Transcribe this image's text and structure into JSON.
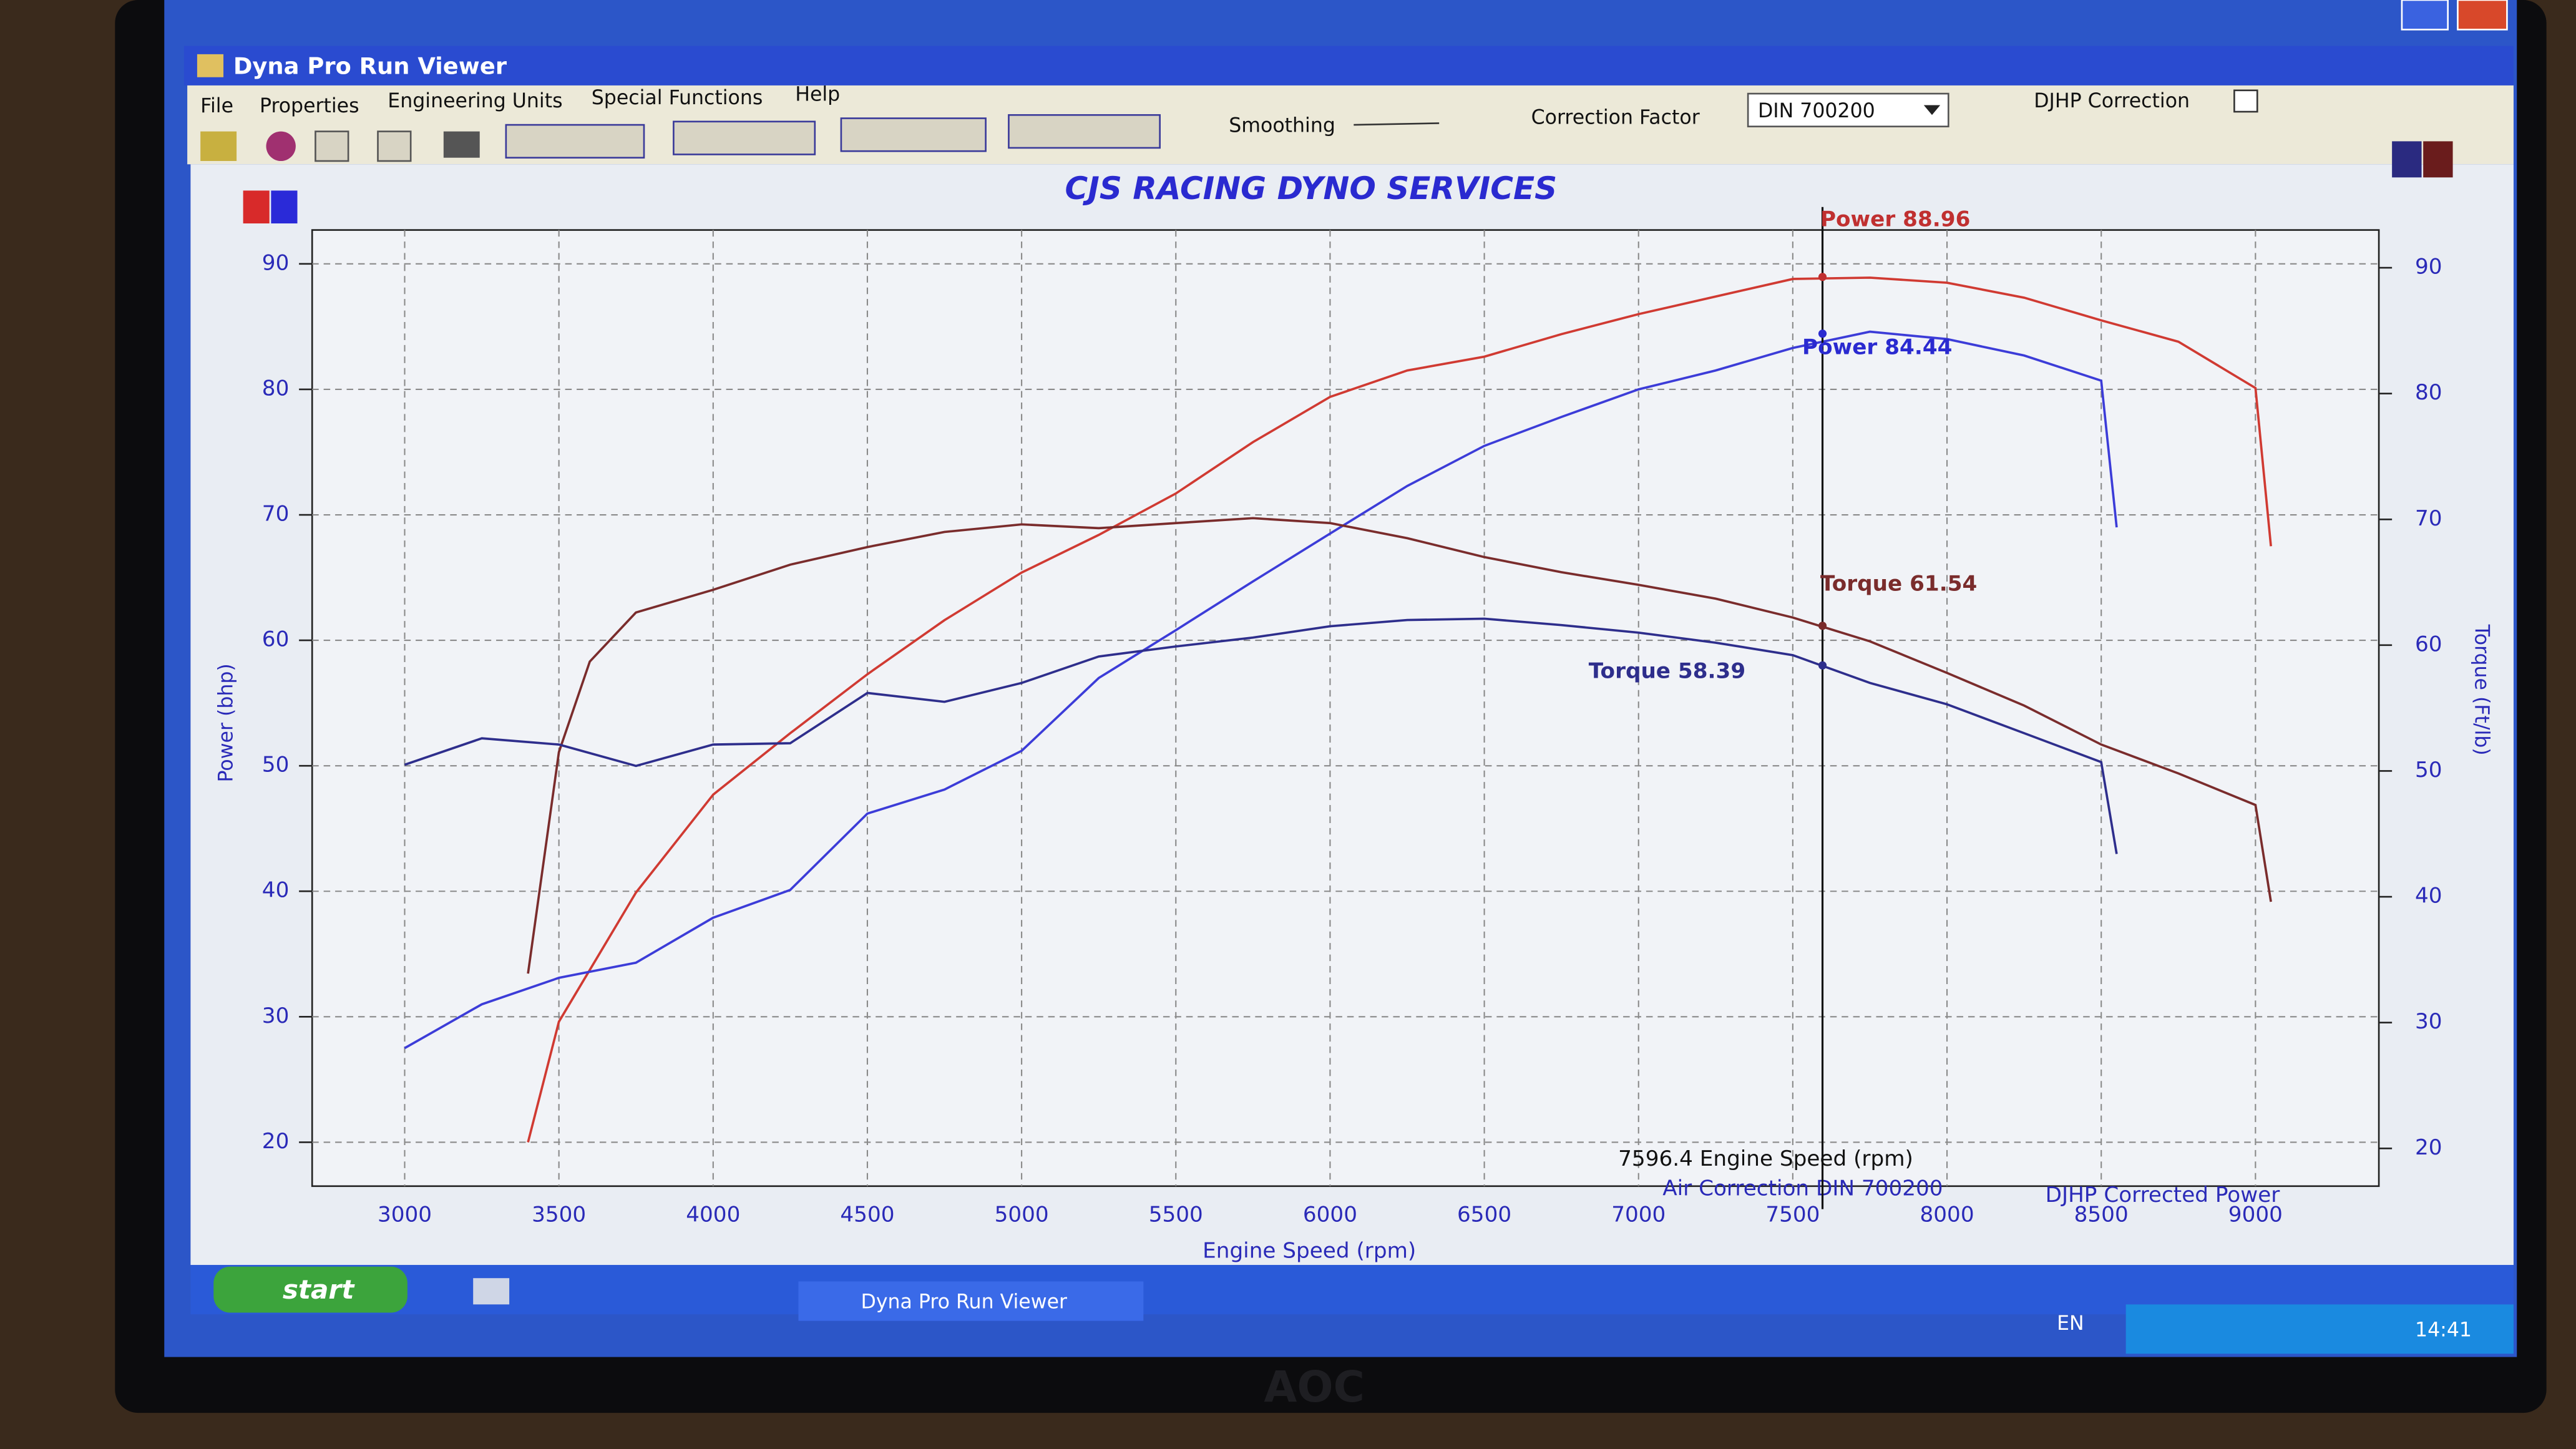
{
  "window": {
    "title": "Dyna Pro Run Viewer",
    "menu": [
      "File",
      "Properties",
      "Engineering Units",
      "Special Functions",
      "Help"
    ],
    "toolbar": {
      "smoothing": "Smoothing",
      "correction_factor": "Correction Factor",
      "correction_value": "DIN 700200",
      "djhp": "DJHP Correction"
    }
  },
  "chart_data": {
    "type": "line",
    "title": "CJS RACING DYNO SERVICES",
    "xlabel": "Engine Speed (rpm)",
    "ylabel": "Power (bhp)",
    "y2label": "Torque (Ft/lb)",
    "xlim": [
      2700,
      9400
    ],
    "xticks": [
      3000,
      3500,
      4000,
      4500,
      5000,
      5500,
      6000,
      6500,
      7000,
      7500,
      8000,
      8500,
      9000
    ],
    "ylim": [
      16.5,
      92.7
    ],
    "yticks": [
      20,
      30,
      40,
      50,
      60,
      70,
      80,
      90
    ],
    "y2lim": [
      17,
      93
    ],
    "y2ticks": [
      20,
      30,
      40,
      50,
      60,
      70,
      80,
      90
    ],
    "grid": true,
    "series": [
      {
        "color": "#d03a32",
        "x": [
          3400,
          3500,
          3750,
          4000,
          4250,
          4500,
          4750,
          5000,
          5250,
          5500,
          5750,
          6000,
          6250,
          6500,
          6750,
          7000,
          7250,
          7500,
          7750,
          8000,
          8250,
          8500,
          8750,
          9000,
          9050
        ],
        "values": [
          20,
          29.6,
          39.9,
          47.7,
          52.6,
          57.3,
          61.6,
          65.4,
          68.4,
          71.7,
          75.8,
          79.4,
          81.5,
          82.6,
          84.4,
          86,
          87.4,
          88.8,
          88.9,
          88.5,
          87.3,
          85.5,
          83.8,
          80.1,
          67.5
        ]
      },
      {
        "color": "#3c3cd8",
        "x": [
          3000,
          3250,
          3500,
          3750,
          4000,
          4250,
          4500,
          4750,
          5000,
          5250,
          5500,
          5750,
          6000,
          6250,
          6500,
          6750,
          7000,
          7250,
          7500,
          7750,
          8000,
          8250,
          8500,
          8550
        ],
        "values": [
          27.5,
          31,
          33.1,
          34.3,
          37.9,
          40.1,
          46.2,
          48.1,
          51.2,
          57,
          60.8,
          64.7,
          68.5,
          72.3,
          75.5,
          77.8,
          80,
          81.5,
          83.3,
          84.6,
          84,
          82.7,
          80.7,
          69
        ]
      },
      {
        "color": "#7a2c2c",
        "axis": "y2",
        "x": [
          3400,
          3500,
          3600,
          3750,
          4000,
          4250,
          4500,
          4750,
          5000,
          5250,
          5500,
          5750,
          6000,
          6250,
          6500,
          6750,
          7000,
          7250,
          7500,
          7750,
          8000,
          8250,
          8500,
          8750,
          9000,
          9050
        ],
        "values": [
          33.9,
          51.5,
          58.7,
          62.6,
          64.4,
          66.4,
          67.8,
          69,
          69.6,
          69.3,
          69.7,
          70.1,
          69.7,
          68.5,
          67,
          65.8,
          64.8,
          63.7,
          62.2,
          60.3,
          57.8,
          55.2,
          52.1,
          49.8,
          47.3,
          39.6
        ]
      },
      {
        "color": "#2e2e8c",
        "axis": "y2",
        "x": [
          3000,
          3250,
          3500,
          3750,
          4000,
          4250,
          4500,
          4750,
          5000,
          5250,
          5500,
          5750,
          6000,
          6250,
          6500,
          6750,
          7000,
          7250,
          7500,
          7750,
          8000,
          8250,
          8500,
          8550
        ],
        "values": [
          50.5,
          52.6,
          52.1,
          50.4,
          52.1,
          52.2,
          56.2,
          55.5,
          57,
          59.1,
          59.9,
          60.6,
          61.5,
          62,
          62.1,
          61.6,
          61,
          60.2,
          59.2,
          57,
          55.3,
          53,
          50.7,
          43.4
        ]
      }
    ],
    "cursor": {
      "value": 7596.4,
      "label": "7596.4 Engine Speed (rpm)"
    },
    "annotations": [
      {
        "value": 88.96,
        "label": "Power 88.96"
      },
      {
        "value": 84.44,
        "label": "Power 84.44"
      },
      {
        "value": 61.54,
        "label": "Torque 61.54"
      },
      {
        "value": 58.39,
        "label": "Torque 58.39"
      }
    ],
    "footer": [
      "Air Correction DIN 700200",
      "DJHP Corrected Power"
    ]
  },
  "taskbar": {
    "start": "start",
    "task": "Dyna Pro Run Viewer",
    "language": "EN",
    "clock": "14:41"
  },
  "monitor": {
    "brand": "AOC"
  }
}
